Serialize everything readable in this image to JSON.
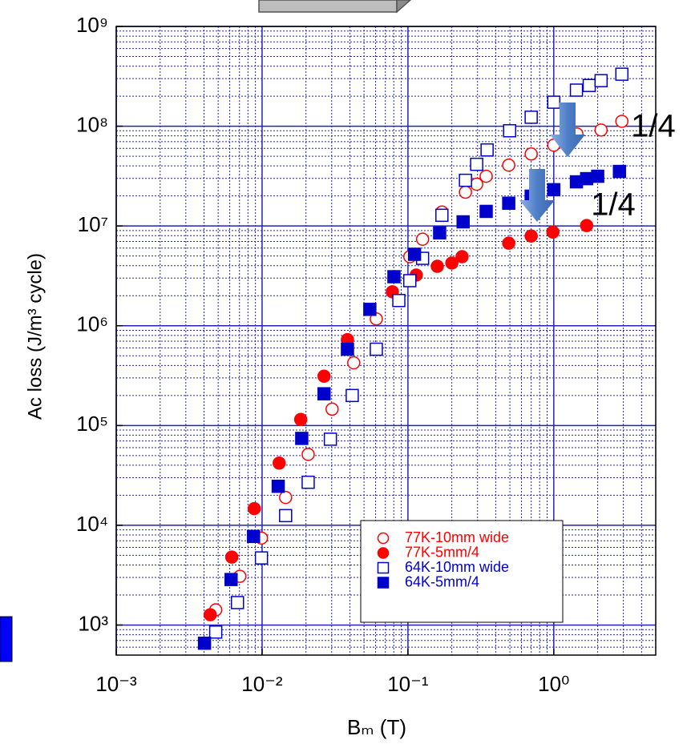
{
  "chart_data": {
    "type": "scatter",
    "xlabel": "Bₘ (T)",
    "ylabel": "Ac loss (J/m³ cycle)",
    "xscale": "log",
    "yscale": "log",
    "xlim": [
      0.001,
      5
    ],
    "ylim": [
      500,
      1000000000
    ],
    "xticks": [
      {
        "value": 0.001,
        "label": "10⁻³"
      },
      {
        "value": 0.01,
        "label": "10⁻²"
      },
      {
        "value": 0.1,
        "label": "10⁻¹"
      },
      {
        "value": 1,
        "label": "10⁰"
      }
    ],
    "yticks": [
      {
        "value": 1000,
        "label": "10³"
      },
      {
        "value": 10000,
        "label": "10⁴"
      },
      {
        "value": 100000,
        "label": "10⁵"
      },
      {
        "value": 1000000,
        "label": "10⁶"
      },
      {
        "value": 10000000,
        "label": "10⁷"
      },
      {
        "value": 100000000,
        "label": "10⁸"
      },
      {
        "value": 1000000000,
        "label": "10⁹"
      }
    ],
    "grid": true,
    "minor_grid": true,
    "grid_color": "#2222bb",
    "legend": "lower right",
    "annotations": [
      "1/4",
      "1/4"
    ],
    "series": [
      {
        "name": "77K-10mm wide",
        "color": "#ff0000",
        "marker": "circle",
        "filled": false,
        "x": [
          0.00481,
          0.00704,
          0.0099,
          0.0145,
          0.0207,
          0.0302,
          0.0425,
          0.0607,
          0.103,
          0.126,
          0.171,
          0.248,
          0.296,
          0.344,
          0.491,
          0.7,
          1.0,
          1.44,
          2.11,
          2.93
        ],
        "values": [
          1420,
          3080,
          7450,
          19000,
          51400,
          146000,
          425000,
          1170000,
          4920000,
          7370000,
          13800000,
          21800000,
          26200000,
          31500000,
          40700000,
          52700000,
          64500000,
          83600000,
          91600000,
          112000000
        ]
      },
      {
        "name": "77K-5mm/4",
        "color": "#ff0000",
        "marker": "circle",
        "filled": true,
        "x": [
          0.00441,
          0.0062,
          0.00884,
          0.0131,
          0.0184,
          0.0266,
          0.0385,
          0.0782,
          0.114,
          0.159,
          0.2,
          0.235,
          0.491,
          0.7,
          0.986,
          1.68
        ],
        "values": [
          1270,
          4800,
          14700,
          42000,
          115000,
          312000,
          726000,
          2190000,
          3220000,
          3940000,
          4250000,
          4920000,
          6720000,
          7930000,
          8690000,
          10100000
        ]
      },
      {
        "name": "64K-10mm wide",
        "color": "#0000cc",
        "marker": "square",
        "filled": false,
        "x": [
          0.00481,
          0.00678,
          0.0099,
          0.0145,
          0.0207,
          0.0294,
          0.0415,
          0.0607,
          0.0866,
          0.103,
          0.126,
          0.171,
          0.248,
          0.296,
          0.349,
          0.498,
          0.7,
          1.0,
          1.43,
          1.75,
          2.11,
          2.93
        ],
        "values": [
          851,
          1680,
          4710,
          12500,
          27000,
          72900,
          200000,
          582000,
          1790000,
          2830000,
          4740000,
          12800000,
          28700000,
          41500000,
          57800000,
          90000000,
          123000000,
          174000000,
          230000000,
          256000000,
          286000000,
          332000000
        ]
      },
      {
        "name": "64K-5mm/4",
        "color": "#0000cc",
        "marker": "square",
        "filled": true,
        "x": [
          0.00403,
          0.00613,
          0.00874,
          0.0129,
          0.0187,
          0.0266,
          0.0385,
          0.0548,
          0.0802,
          0.111,
          0.165,
          0.239,
          0.344,
          0.491,
          0.7,
          1.0,
          1.43,
          1.68,
          2.0,
          2.82
        ],
        "values": [
          658,
          2860,
          7730,
          24600,
          74300,
          208000,
          582000,
          1460000,
          3100000,
          5200000,
          8530000,
          11000000,
          14000000,
          16900000,
          19900000,
          23100000,
          27700000,
          29800000,
          31500000,
          35200000
        ]
      }
    ]
  }
}
